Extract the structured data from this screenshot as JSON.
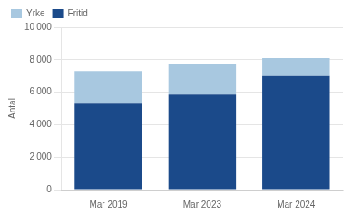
{
  "chart_data": {
    "type": "bar",
    "stacked": true,
    "categories": [
      "Mar 2019",
      "Mar 2023",
      "Mar 2024"
    ],
    "series": [
      {
        "name": "Fritid",
        "color": "#1B4A8A",
        "values": [
          5300,
          5850,
          7000
        ]
      },
      {
        "name": "Yrke",
        "color": "#A8C8E0",
        "values": [
          2000,
          1900,
          1100
        ]
      }
    ],
    "ylabel": "Antal",
    "ylim": [
      0,
      10000
    ],
    "yticks": [
      0,
      {
        "value": 2000,
        "label": "2 000"
      },
      {
        "value": 4000,
        "label": "4 000"
      },
      {
        "value": 6000,
        "label": "6 000"
      },
      {
        "value": 8000,
        "label": "8 000"
      },
      {
        "value": 10000,
        "label": "10 000"
      }
    ],
    "grid": true,
    "legend": "upper left"
  }
}
